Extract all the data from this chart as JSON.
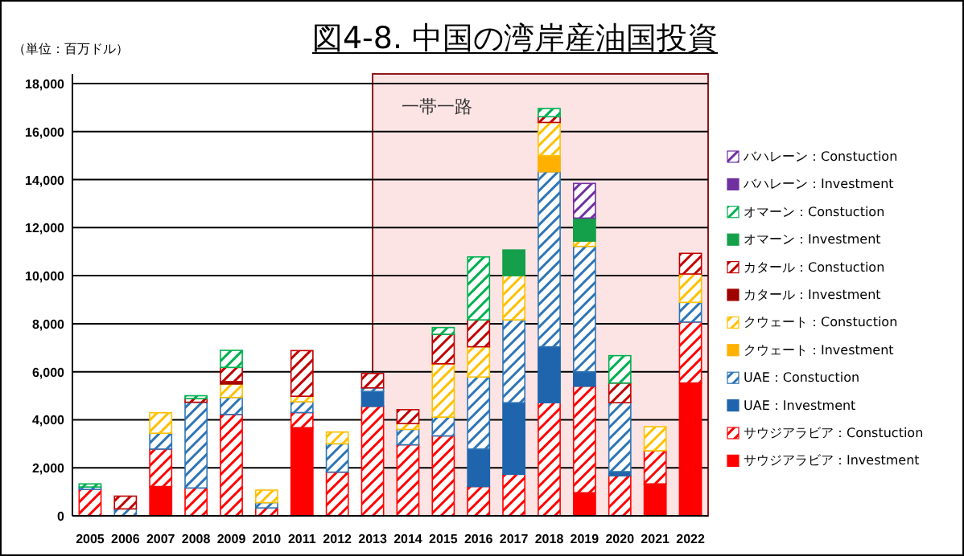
{
  "chart_data": {
    "type": "bar",
    "stacked": true,
    "title": "図4-8. 中国の湾岸産油国投資",
    "ylabel": "（単位：百万ドル）",
    "categories": [
      "2005",
      "2006",
      "2007",
      "2008",
      "2009",
      "2010",
      "2011",
      "2012",
      "2013",
      "2014",
      "2015",
      "2016",
      "2017",
      "2018",
      "2019",
      "2020",
      "2021",
      "2022"
    ],
    "ylim": [
      0,
      18000
    ],
    "yticks": [
      {
        "value": 0,
        "label": "0"
      },
      {
        "value": 2000,
        "label": "2,000"
      },
      {
        "value": 4000,
        "label": "4,000"
      },
      {
        "value": 6000,
        "label": "6,000"
      },
      {
        "value": 8000,
        "label": "8,000"
      },
      {
        "value": 10000,
        "label": "10,000"
      },
      {
        "value": 12000,
        "label": "12,000"
      },
      {
        "value": 14000,
        "label": "14,000"
      },
      {
        "value": 16000,
        "label": "16,000"
      },
      {
        "value": 18000,
        "label": "18,000"
      }
    ],
    "grid": "y",
    "legend": "right",
    "bands": [
      {
        "axis": "x",
        "from": "2013",
        "to": "2022",
        "label": "一帯一路",
        "color": "#fde4e4"
      }
    ],
    "series": [
      {
        "name": "サウジアラビア：Investment",
        "color": "#ff0000",
        "values": [
          null,
          null,
          1220,
          null,
          null,
          null,
          3670,
          null,
          null,
          null,
          null,
          null,
          null,
          null,
          960,
          null,
          1330,
          5530
        ]
      },
      {
        "name": "サウジアラビア：Constuction",
        "color": "#ff0000",
        "values": [
          1100,
          null,
          1560,
          1160,
          4220,
          330,
          630,
          1820,
          4560,
          2960,
          3330,
          1220,
          1730,
          4710,
          4440,
          1670,
          1380,
          2540
        ]
      },
      {
        "name": "UAE：Investment",
        "color": "#1f65ad",
        "values": [
          null,
          null,
          null,
          null,
          null,
          null,
          null,
          null,
          620,
          null,
          null,
          1560,
          2980,
          2330,
          600,
          170,
          null,
          null
        ]
      },
      {
        "name": "UAE：Constuction",
        "color": "#2e75b6",
        "values": [
          100,
          290,
          660,
          3570,
          710,
          220,
          450,
          1180,
          150,
          640,
          780,
          3000,
          3450,
          7290,
          5220,
          2870,
          null,
          820
        ]
      },
      {
        "name": "クウェート：Investment",
        "color": "#ffb000",
        "values": [
          null,
          null,
          null,
          null,
          null,
          null,
          null,
          null,
          null,
          null,
          null,
          null,
          null,
          670,
          null,
          null,
          null,
          null
        ]
      },
      {
        "name": "クウェート：Constuction",
        "color": "#ffc000",
        "values": [
          null,
          null,
          850,
          null,
          560,
          520,
          230,
          490,
          null,
          240,
          2220,
          1260,
          1840,
          1380,
          220,
          null,
          1000,
          1180
        ]
      },
      {
        "name": "カタール：Investment",
        "color": "#a00000",
        "values": [
          null,
          null,
          null,
          null,
          100,
          null,
          null,
          null,
          null,
          null,
          null,
          null,
          null,
          null,
          null,
          null,
          null,
          null
        ]
      },
      {
        "name": "カタール：Constuction",
        "color": "#c00000",
        "values": [
          null,
          530,
          null,
          150,
          590,
          null,
          1900,
          null,
          600,
          580,
          1230,
          1120,
          null,
          240,
          null,
          820,
          null,
          860
        ]
      },
      {
        "name": "オマーン：Investment",
        "color": "#14a04a",
        "values": [
          null,
          null,
          null,
          null,
          null,
          null,
          null,
          null,
          null,
          null,
          null,
          null,
          1070,
          null,
          960,
          null,
          null,
          null
        ]
      },
      {
        "name": "オマーン：Constuction",
        "color": "#00b050",
        "values": [
          130,
          null,
          null,
          120,
          710,
          null,
          null,
          null,
          null,
          null,
          280,
          2620,
          null,
          340,
          null,
          1140,
          null,
          null
        ]
      },
      {
        "name": "バハレーン：Investment",
        "color": "#7030a0",
        "values": [
          null,
          null,
          null,
          null,
          null,
          null,
          null,
          null,
          null,
          null,
          null,
          null,
          null,
          null,
          null,
          null,
          null,
          null
        ]
      },
      {
        "name": "バハレーン：Constuction",
        "color": "#7030a0",
        "values": [
          null,
          null,
          null,
          null,
          null,
          null,
          null,
          null,
          null,
          null,
          null,
          null,
          null,
          null,
          1440,
          null,
          null,
          null
        ]
      }
    ]
  }
}
